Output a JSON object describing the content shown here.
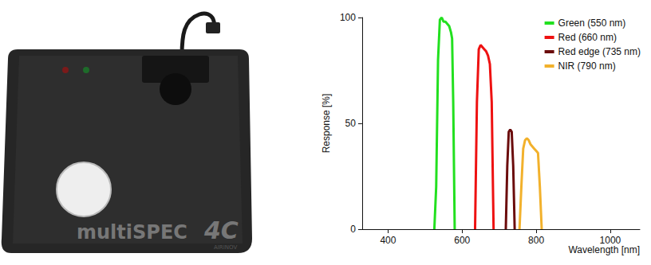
{
  "chart_data": {
    "type": "line",
    "x_label": "Wavelength [nm]",
    "y_label": "Response [%]",
    "xlim": [
      330,
      1080
    ],
    "xticks": [
      400,
      600,
      800,
      1000
    ],
    "ylim": [
      0,
      100
    ],
    "yticks": [
      0,
      50,
      100
    ],
    "grid": false,
    "legend": "upper right",
    "series": [
      {
        "name": "Green (550 nm)",
        "color": "#22e01f",
        "x": [
          525,
          530,
          535,
          540,
          545,
          550,
          555,
          560,
          565,
          570,
          573,
          576,
          580
        ],
        "values": [
          0,
          20,
          80,
          99,
          100,
          98,
          98,
          97,
          96,
          93,
          90,
          60,
          0
        ]
      },
      {
        "name": "Red (660 nm)",
        "color": "#ee1111",
        "x": [
          635,
          640,
          645,
          650,
          655,
          660,
          665,
          670,
          675,
          680,
          685
        ],
        "values": [
          0,
          60,
          85,
          87,
          86,
          85,
          84,
          82,
          78,
          60,
          0
        ]
      },
      {
        "name": "Red edge (735 nm)",
        "color": "#6b0c0c",
        "x": [
          718,
          722,
          726,
          730,
          734,
          738,
          742
        ],
        "values": [
          0,
          30,
          46,
          47,
          46,
          30,
          0
        ]
      },
      {
        "name": "NIR (790 nm)",
        "color": "#f2b12c",
        "x": [
          755,
          760,
          765,
          770,
          775,
          780,
          785,
          790,
          795,
          800,
          805,
          810,
          815
        ],
        "values": [
          0,
          20,
          38,
          42,
          43,
          42,
          40,
          39,
          38,
          37,
          36,
          20,
          0
        ]
      }
    ]
  },
  "device": {
    "label": "multiSPEC",
    "model": "4C",
    "brand": "AIRINOV"
  }
}
